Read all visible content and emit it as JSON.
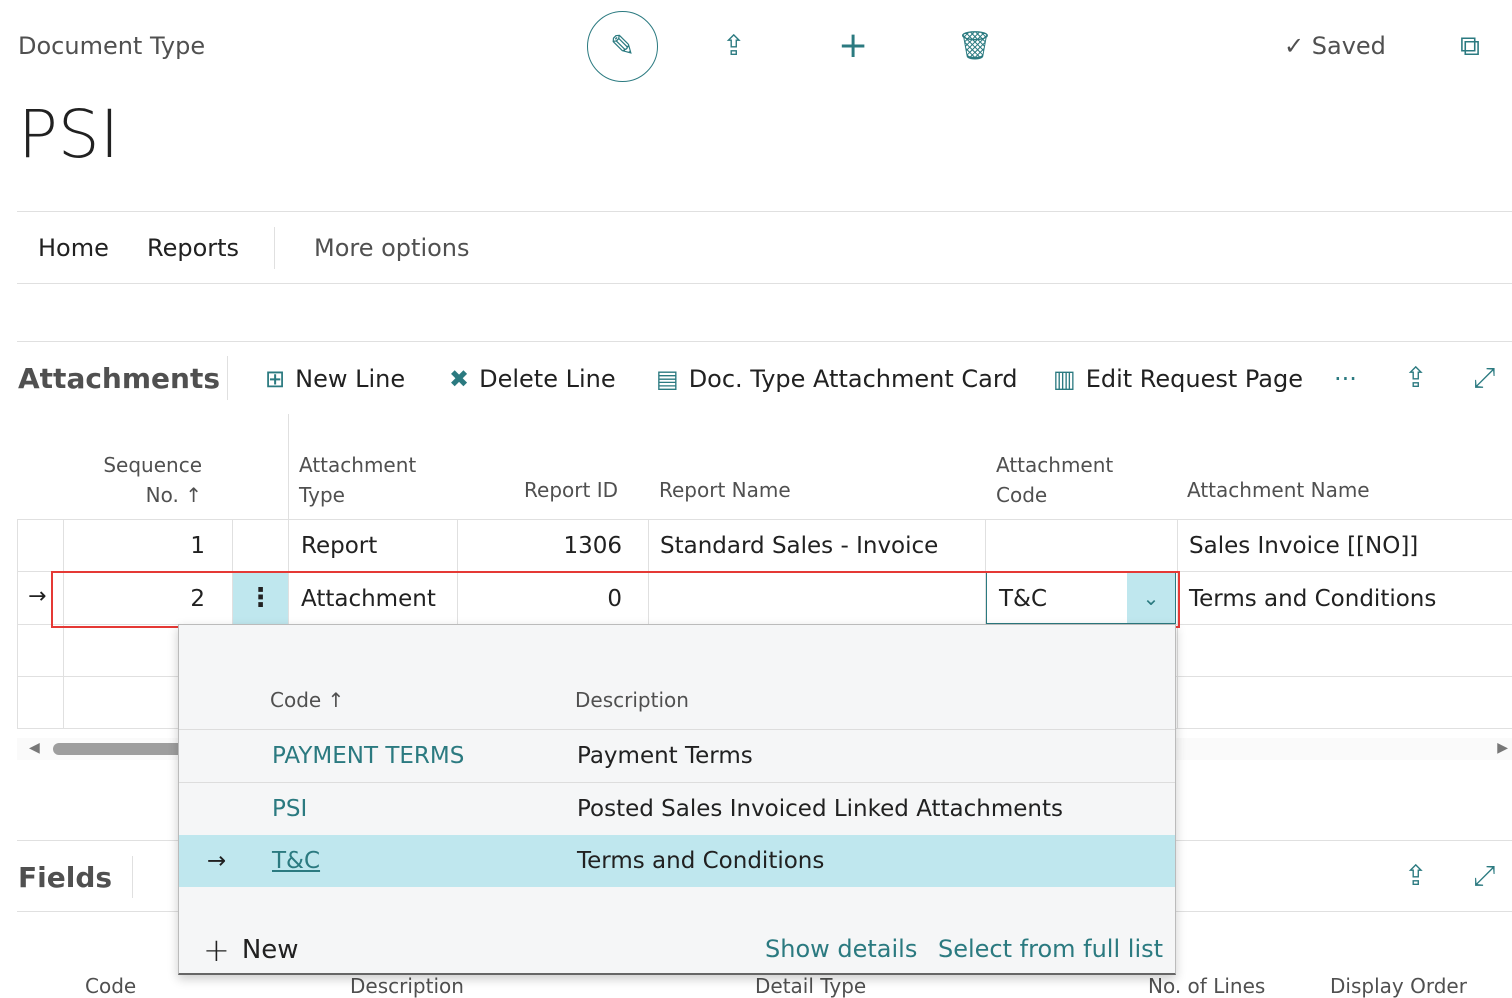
{
  "header": {
    "caption": "Document Type",
    "title": "PSI",
    "status": "Saved"
  },
  "nav": {
    "items": [
      "Home",
      "Reports"
    ],
    "more": "More options"
  },
  "attachments": {
    "title": "Attachments",
    "actions": [
      "New Line",
      "Delete Line",
      "Doc. Type Attachment Card",
      "Edit Request Page"
    ],
    "more": "···",
    "columns": [
      "Sequence No.",
      "Attachment Type",
      "Report ID",
      "Report Name",
      "Attachment Code",
      "Attachment Name"
    ],
    "rows": [
      {
        "seq": "1",
        "type": "Report",
        "report_id": "1306",
        "report_name": "Standard Sales - Invoice",
        "code": "",
        "name": "Sales Invoice [[NO]]"
      },
      {
        "seq": "2",
        "type": "Attachment",
        "report_id": "0",
        "report_name": "",
        "code": "T&C",
        "name": "Terms and Conditions"
      }
    ]
  },
  "lookup": {
    "columns": [
      "Code",
      "Description"
    ],
    "rows": [
      {
        "code": "PAYMENT TERMS",
        "description": "Payment Terms"
      },
      {
        "code": "PSI",
        "description": "Posted Sales Invoiced Linked Attachments"
      },
      {
        "code": "T&C",
        "description": "Terms and Conditions",
        "selected": true
      }
    ],
    "new": "New",
    "show_details": "Show details",
    "select_full": "Select from full list"
  },
  "fields": {
    "title": "Fields",
    "columns": [
      "Code",
      "Description",
      "Detail Type",
      "No. of Lines",
      "Display Order"
    ]
  },
  "colors": {
    "accent": "#2b7a80",
    "selected_row": "#bfe7ee",
    "highlight_border": "#e53935"
  }
}
